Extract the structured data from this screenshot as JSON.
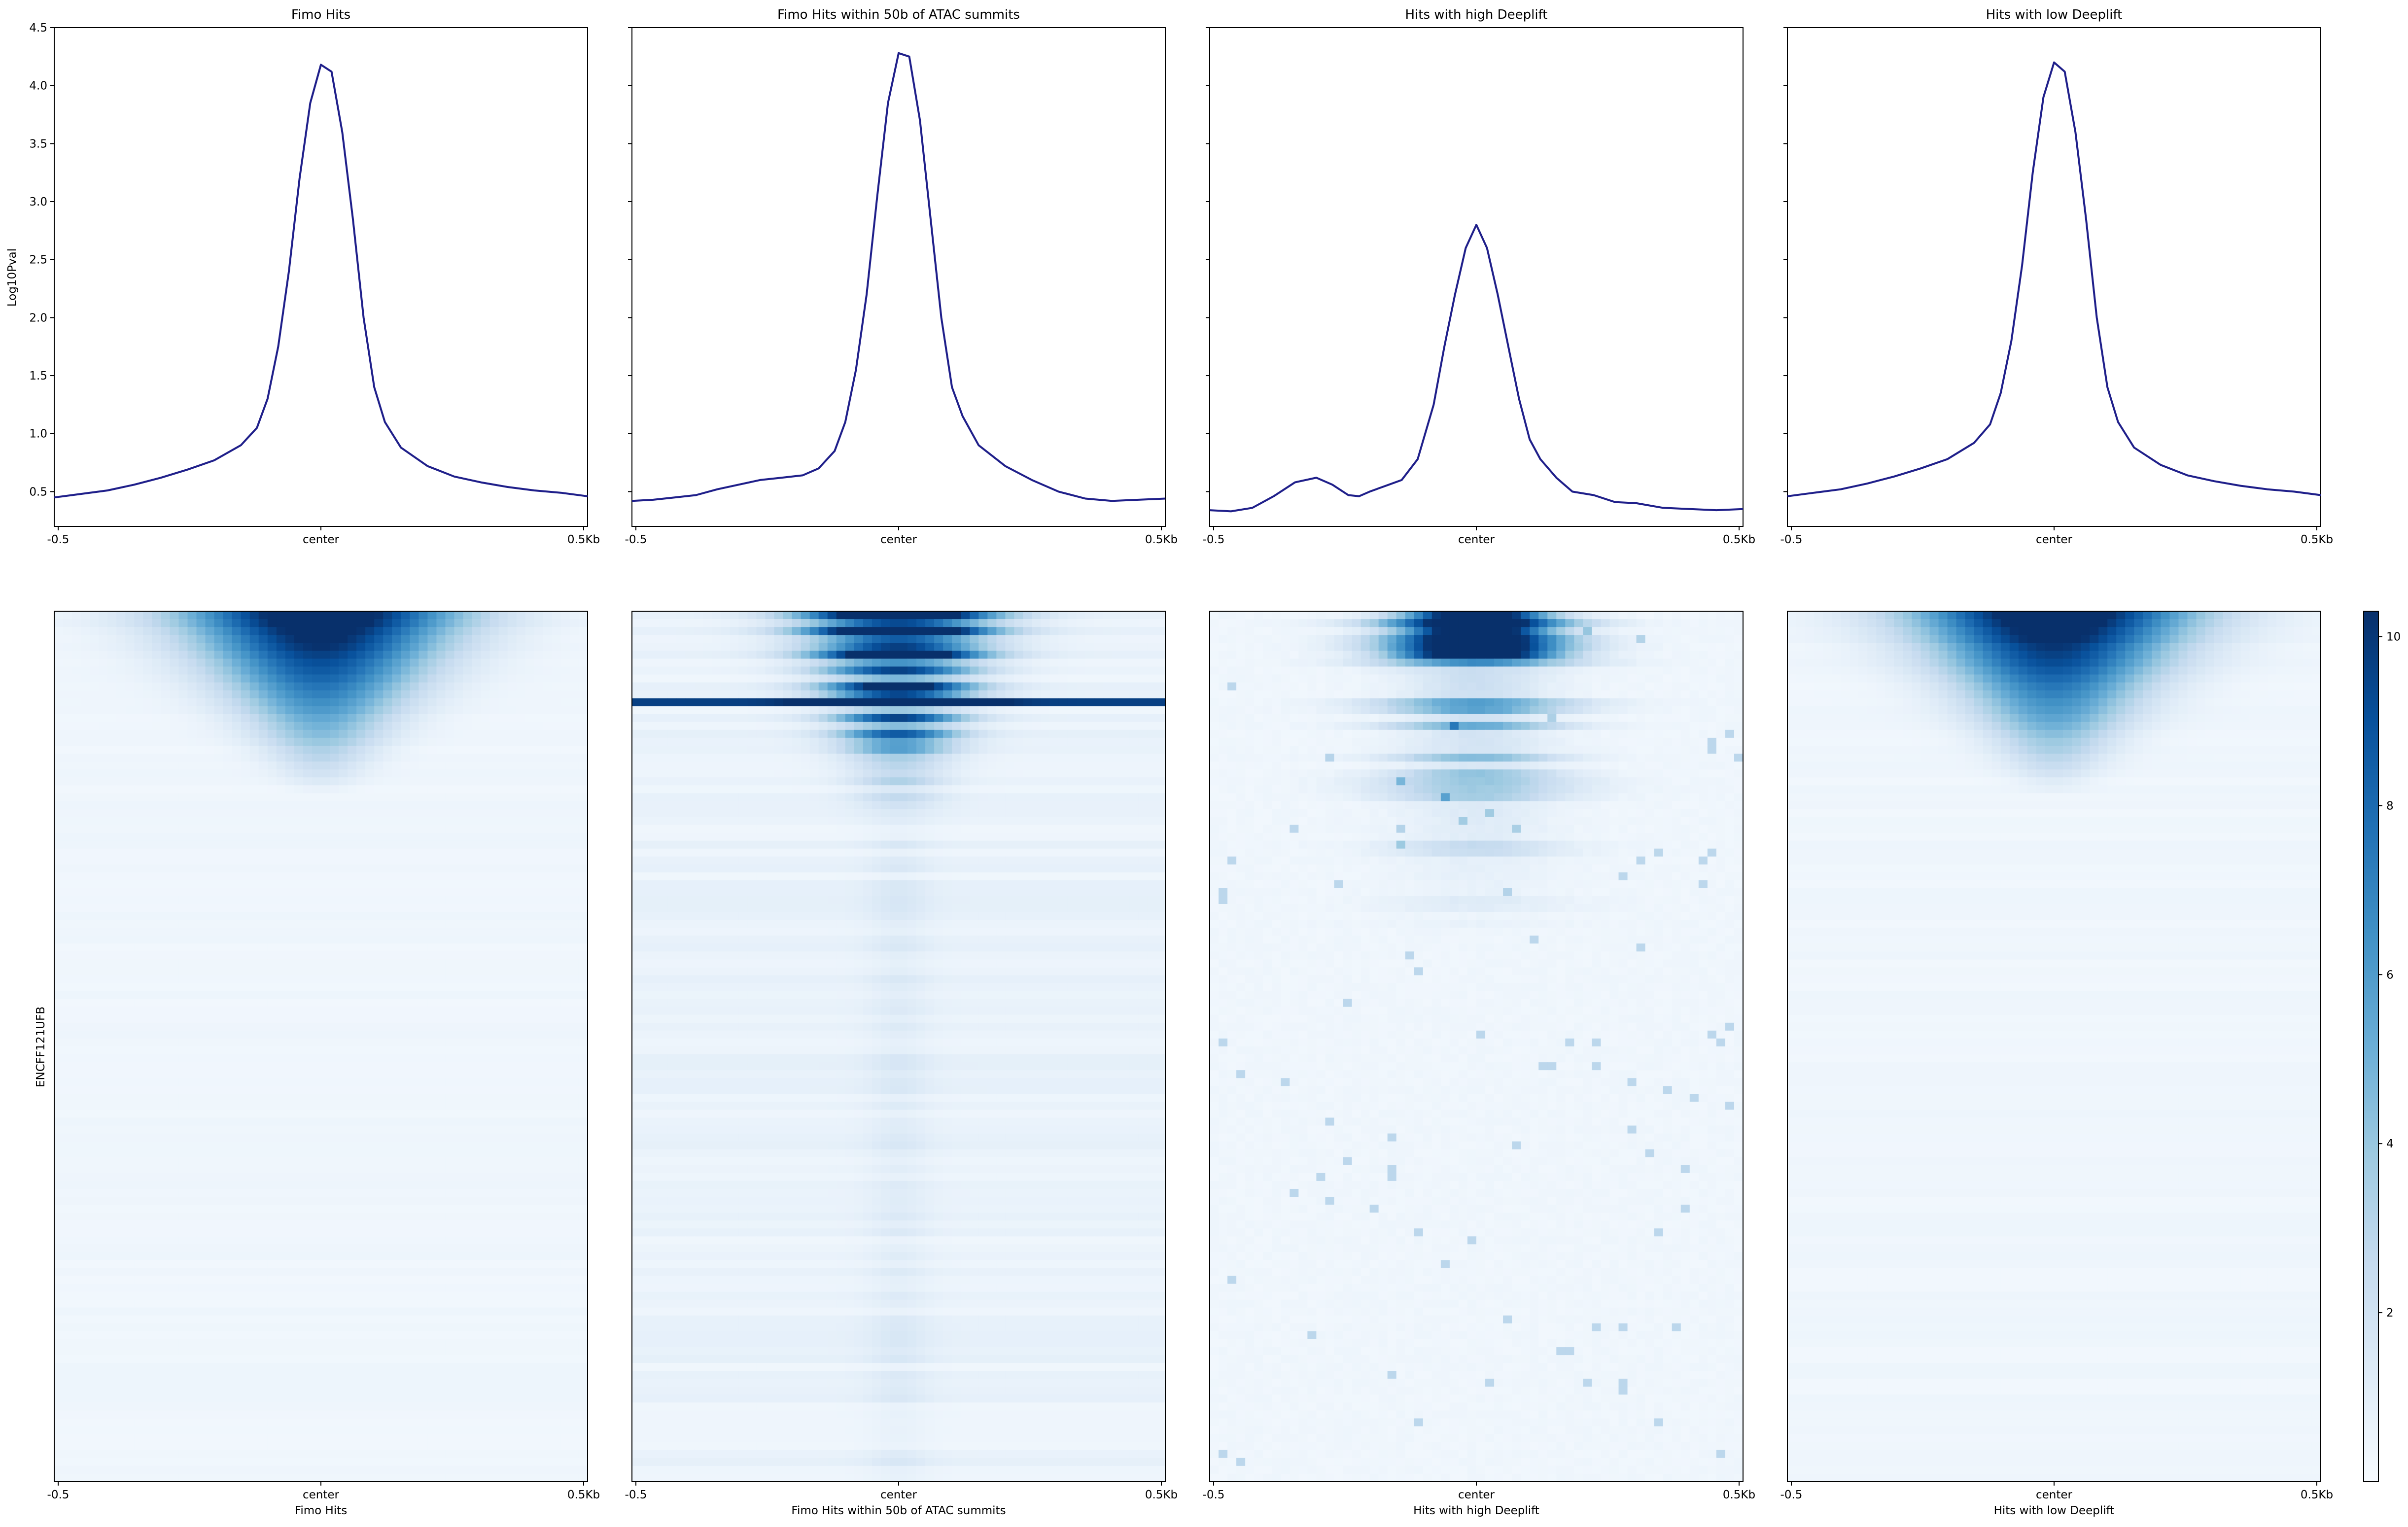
{
  "figure": {
    "ylabel_profile": "Log10Pval",
    "ylabel_heatmap": "ENCFF121UFB",
    "colors": {
      "line": "#1f1f8a",
      "heat_low": "#f4f9ff",
      "heat_high": "#08306b"
    }
  },
  "chart_data": [
    {
      "type": "line",
      "title": "Fimo Hits",
      "xlabel": "",
      "ylabel": "Log10Pval",
      "x_ticks": [
        "-0.5",
        "center",
        "0.5Kb"
      ],
      "y_ticks": [
        "0.5",
        "1.0",
        "1.5",
        "2.0",
        "2.5",
        "3.0",
        "3.5",
        "4.0",
        "4.5"
      ],
      "x": [
        -0.5,
        -0.45,
        -0.4,
        -0.35,
        -0.3,
        -0.25,
        -0.2,
        -0.15,
        -0.12,
        -0.1,
        -0.08,
        -0.06,
        -0.04,
        -0.02,
        0.0,
        0.02,
        0.04,
        0.06,
        0.08,
        0.1,
        0.12,
        0.15,
        0.2,
        0.25,
        0.3,
        0.35,
        0.4,
        0.45,
        0.5
      ],
      "y": [
        0.45,
        0.48,
        0.51,
        0.56,
        0.62,
        0.69,
        0.77,
        0.9,
        1.05,
        1.3,
        1.75,
        2.4,
        3.2,
        3.85,
        4.18,
        4.12,
        3.6,
        2.85,
        2.0,
        1.4,
        1.1,
        0.88,
        0.72,
        0.63,
        0.58,
        0.54,
        0.51,
        0.49,
        0.46
      ],
      "ylim": [
        0.2,
        4.5
      ],
      "xlim": [
        -0.5,
        0.5
      ],
      "grid": false
    },
    {
      "type": "line",
      "title": "Fimo Hits within 50b of ATAC summits",
      "xlabel": "",
      "ylabel": "",
      "x_ticks": [
        "-0.5",
        "center",
        "0.5Kb"
      ],
      "x": [
        -0.5,
        -0.46,
        -0.42,
        -0.38,
        -0.34,
        -0.3,
        -0.26,
        -0.22,
        -0.18,
        -0.15,
        -0.12,
        -0.1,
        -0.08,
        -0.06,
        -0.04,
        -0.02,
        0.0,
        0.02,
        0.04,
        0.06,
        0.08,
        0.1,
        0.12,
        0.15,
        0.2,
        0.25,
        0.3,
        0.35,
        0.4,
        0.45,
        0.5
      ],
      "y": [
        0.42,
        0.43,
        0.45,
        0.47,
        0.52,
        0.56,
        0.6,
        0.62,
        0.64,
        0.7,
        0.85,
        1.1,
        1.55,
        2.2,
        3.05,
        3.85,
        4.28,
        4.25,
        3.7,
        2.85,
        2.0,
        1.4,
        1.15,
        0.9,
        0.72,
        0.6,
        0.5,
        0.44,
        0.42,
        0.43,
        0.44
      ],
      "ylim": [
        0.2,
        4.5
      ],
      "xlim": [
        -0.5,
        0.5
      ],
      "grid": false
    },
    {
      "type": "line",
      "title": "Hits with high Deeplift",
      "xlabel": "",
      "ylabel": "",
      "x_ticks": [
        "-0.5",
        "center",
        "0.5Kb"
      ],
      "x": [
        -0.5,
        -0.46,
        -0.42,
        -0.38,
        -0.34,
        -0.3,
        -0.27,
        -0.24,
        -0.22,
        -0.2,
        -0.17,
        -0.14,
        -0.11,
        -0.08,
        -0.06,
        -0.04,
        -0.02,
        0.0,
        0.02,
        0.04,
        0.06,
        0.08,
        0.1,
        0.12,
        0.15,
        0.18,
        0.22,
        0.26,
        0.3,
        0.35,
        0.4,
        0.45,
        0.5
      ],
      "y": [
        0.34,
        0.33,
        0.36,
        0.46,
        0.58,
        0.62,
        0.56,
        0.47,
        0.46,
        0.5,
        0.55,
        0.6,
        0.78,
        1.25,
        1.75,
        2.2,
        2.6,
        2.8,
        2.6,
        2.2,
        1.75,
        1.3,
        0.95,
        0.78,
        0.62,
        0.5,
        0.47,
        0.41,
        0.4,
        0.36,
        0.35,
        0.34,
        0.35
      ],
      "ylim": [
        0.2,
        4.5
      ],
      "xlim": [
        -0.5,
        0.5
      ],
      "grid": false
    },
    {
      "type": "line",
      "title": "Hits with low Deeplift",
      "xlabel": "",
      "ylabel": "",
      "x_ticks": [
        "-0.5",
        "center",
        "0.5Kb"
      ],
      "x": [
        -0.5,
        -0.45,
        -0.4,
        -0.35,
        -0.3,
        -0.25,
        -0.2,
        -0.15,
        -0.12,
        -0.1,
        -0.08,
        -0.06,
        -0.04,
        -0.02,
        0.0,
        0.02,
        0.04,
        0.06,
        0.08,
        0.1,
        0.12,
        0.15,
        0.2,
        0.25,
        0.3,
        0.35,
        0.4,
        0.45,
        0.5
      ],
      "y": [
        0.46,
        0.49,
        0.52,
        0.57,
        0.63,
        0.7,
        0.78,
        0.92,
        1.08,
        1.35,
        1.8,
        2.45,
        3.25,
        3.9,
        4.2,
        4.12,
        3.6,
        2.85,
        2.0,
        1.4,
        1.1,
        0.88,
        0.73,
        0.64,
        0.59,
        0.55,
        0.52,
        0.5,
        0.47
      ],
      "ylim": [
        0.2,
        4.5
      ],
      "xlim": [
        -0.5,
        0.5
      ],
      "grid": false
    },
    {
      "type": "heatmap",
      "title": "",
      "xlabel": "Fimo Hits",
      "ylabel": "ENCFF121UFB",
      "x_ticks": [
        "-0.5",
        "center",
        "0.5Kb"
      ],
      "zlim": [
        0,
        10.3
      ],
      "colormap": "Blues",
      "pattern": "smooth V-shaped high signal centered at 0, decaying with row rank"
    },
    {
      "type": "heatmap",
      "title": "",
      "xlabel": "Fimo Hits within 50b of ATAC summits",
      "ylabel": "",
      "x_ticks": [
        "-0.5",
        "center",
        "0.5Kb"
      ],
      "zlim": [
        0,
        10.3
      ],
      "colormap": "Blues",
      "pattern": "streaky rows, strong central signal in top rows"
    },
    {
      "type": "heatmap",
      "title": "",
      "xlabel": "Hits with high Deeplift",
      "ylabel": "",
      "x_ticks": [
        "-0.5",
        "center",
        "0.5Kb"
      ],
      "zlim": [
        0,
        10.3
      ],
      "colormap": "Blues",
      "pattern": "sparse blotchy rows, strong block at top near center"
    },
    {
      "type": "heatmap",
      "title": "",
      "xlabel": "Hits with low Deeplift",
      "ylabel": "",
      "x_ticks": [
        "-0.5",
        "center",
        "0.5Kb"
      ],
      "zlim": [
        0,
        10.3
      ],
      "colormap": "Blues",
      "pattern": "smooth V-shaped high signal centered at 0, decaying with row rank"
    }
  ],
  "colorbar": {
    "ticks": [
      "2",
      "4",
      "6",
      "8",
      "10"
    ],
    "values": [
      2,
      4,
      6,
      8,
      10
    ],
    "range": [
      0,
      10.3
    ]
  }
}
